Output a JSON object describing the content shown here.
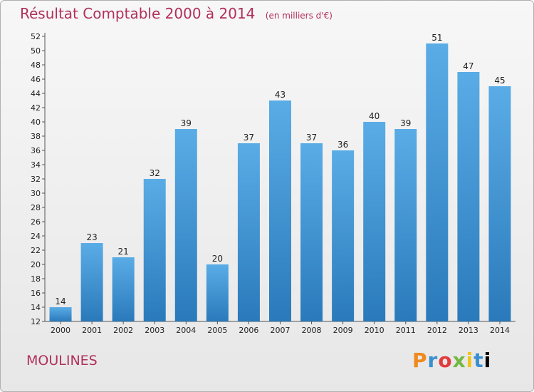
{
  "header": {
    "title": "Résultat Comptable 2000 à 2014",
    "subtitle": "(en milliers d'€)"
  },
  "footer": {
    "commune": "MOULINES",
    "logo_letters": [
      "P",
      "r",
      "o",
      "x",
      "i",
      "t",
      "i"
    ]
  },
  "colors": {
    "accent": "#b0305a",
    "bar_top": "#5aace6",
    "bar_bottom": "#2a7abb"
  },
  "chart_data": {
    "type": "bar",
    "categories": [
      "2000",
      "2001",
      "2002",
      "2003",
      "2004",
      "2005",
      "2006",
      "2007",
      "2008",
      "2009",
      "2010",
      "2011",
      "2012",
      "2013",
      "2014"
    ],
    "values": [
      14,
      23,
      21,
      32,
      39,
      20,
      37,
      43,
      37,
      36,
      40,
      39,
      51,
      47,
      45
    ],
    "title": "Résultat Comptable 2000 à 2014",
    "subtitle": "(en milliers d'€)",
    "xlabel": "",
    "ylabel": "",
    "ylim": [
      12,
      52
    ],
    "yticks": [
      12,
      14,
      16,
      18,
      20,
      22,
      24,
      26,
      28,
      30,
      32,
      34,
      36,
      38,
      40,
      42,
      44,
      46,
      48,
      50,
      52
    ],
    "grid": false,
    "data_labels": true
  }
}
